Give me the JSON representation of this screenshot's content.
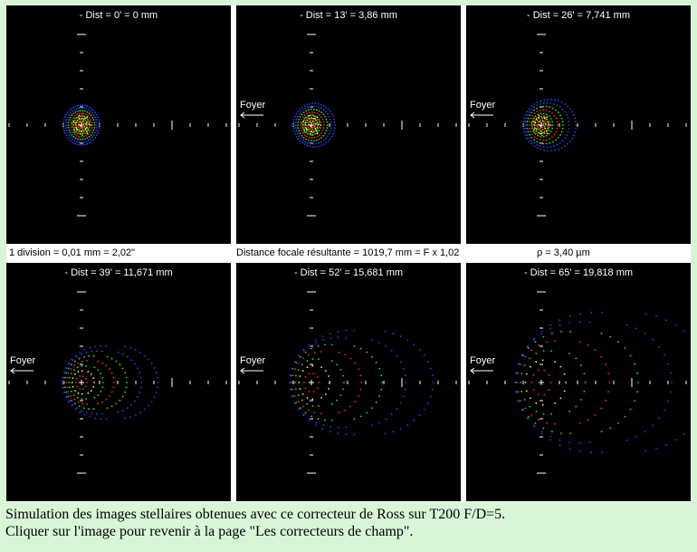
{
  "panels": [
    {
      "title": "- Dist = 0' = 0 mm",
      "foyer": "",
      "aberration": 0
    },
    {
      "title": "- Dist = 13' = 3,86 mm",
      "foyer": "Foyer",
      "aberration": 0.05
    },
    {
      "title": "- Dist = 26' = 7,741 mm",
      "foyer": "Foyer",
      "aberration": 0.15
    },
    {
      "title": "- Dist = 39' = 11,671 mm",
      "foyer": "Foyer",
      "aberration": 0.4
    },
    {
      "title": "- Dist = 52' = 15,681 mm",
      "foyer": "Foyer",
      "aberration": 0.7
    },
    {
      "title": "- Dist = 65' = 19,818 mm",
      "foyer": "Foyer",
      "aberration": 1.0
    }
  ],
  "info": {
    "scale": "1 division = 0,01 mm = 2,02\"",
    "focal": "Distance focale résultante = 1019,7 mm = F x 1,02",
    "rho": "ρ = 3,40 µm"
  },
  "caption": {
    "line1": "Simulation des images stellaires obtenues avec ce correcteur de Ross sur T200 F/D=5.",
    "line2": "Cliquer sur l'image pour revenir à la page \"Les correcteurs de champ\"."
  },
  "colors": {
    "background": "#d8f5d8",
    "panel": "#000000",
    "axes": "#ffffff",
    "spot_red": "#ff2020",
    "spot_yellow": "#ffff00",
    "spot_green": "#20e020",
    "spot_blue": "#2040ff"
  }
}
